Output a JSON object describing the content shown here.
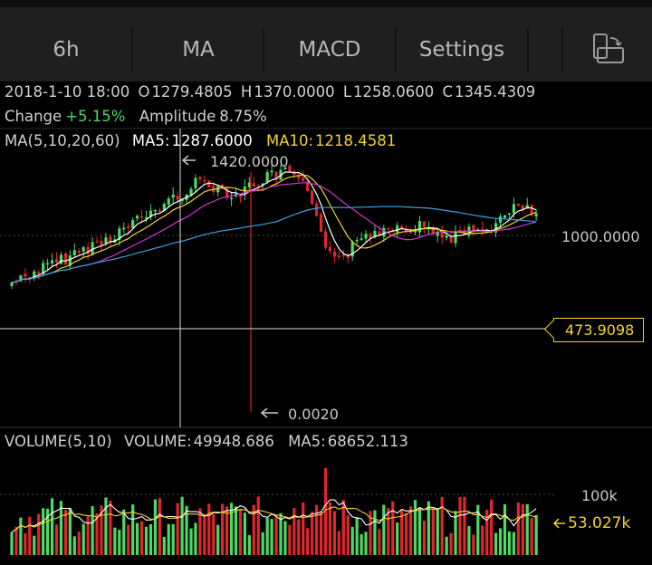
{
  "toolbar": {
    "tabs": [
      {
        "label": "6h"
      },
      {
        "label": "MA"
      },
      {
        "label": "MACD"
      },
      {
        "label": "Settings"
      }
    ],
    "rotate_icon": "landscape-rotate-icon"
  },
  "ohlc": {
    "date": "2018-1-10 18:00",
    "open_label": "O",
    "open": "1279.4805",
    "high_label": "H",
    "high": "1370.0000",
    "low_label": "L",
    "low": "1258.0600",
    "close_label": "C",
    "close": "1345.4309",
    "change_label": "Change",
    "change": "+5.15%",
    "amplitude_label": "Amplitude",
    "amplitude": "8.75%"
  },
  "ma_legend": {
    "title": "MA(5,10,20,60)",
    "ma5_label": "MA5:",
    "ma5": "1287.6000",
    "ma10_label": "MA10:",
    "ma10": "1218.4581"
  },
  "price_axis": {
    "max_marker": "1420.0000",
    "min_marker": "0.0020",
    "mid_label": "1000.0000",
    "cursor_price": "473.9098"
  },
  "volume_legend": {
    "title": "VOLUME(5,10)",
    "volume_label": "VOLUME:",
    "volume": "49948.686",
    "ma5_label": "MA5:",
    "ma5": "68652.113"
  },
  "volume_axis": {
    "tick_label": "100k",
    "cursor_value": "53.027k"
  },
  "colors": {
    "up": "#4cd964",
    "down": "#e0262d",
    "ma5": "#ffffff",
    "ma10": "#f0d230",
    "ma20": "#d632d6",
    "ma60": "#3aa0e0",
    "crosshair": "#e0e0e0"
  }
}
